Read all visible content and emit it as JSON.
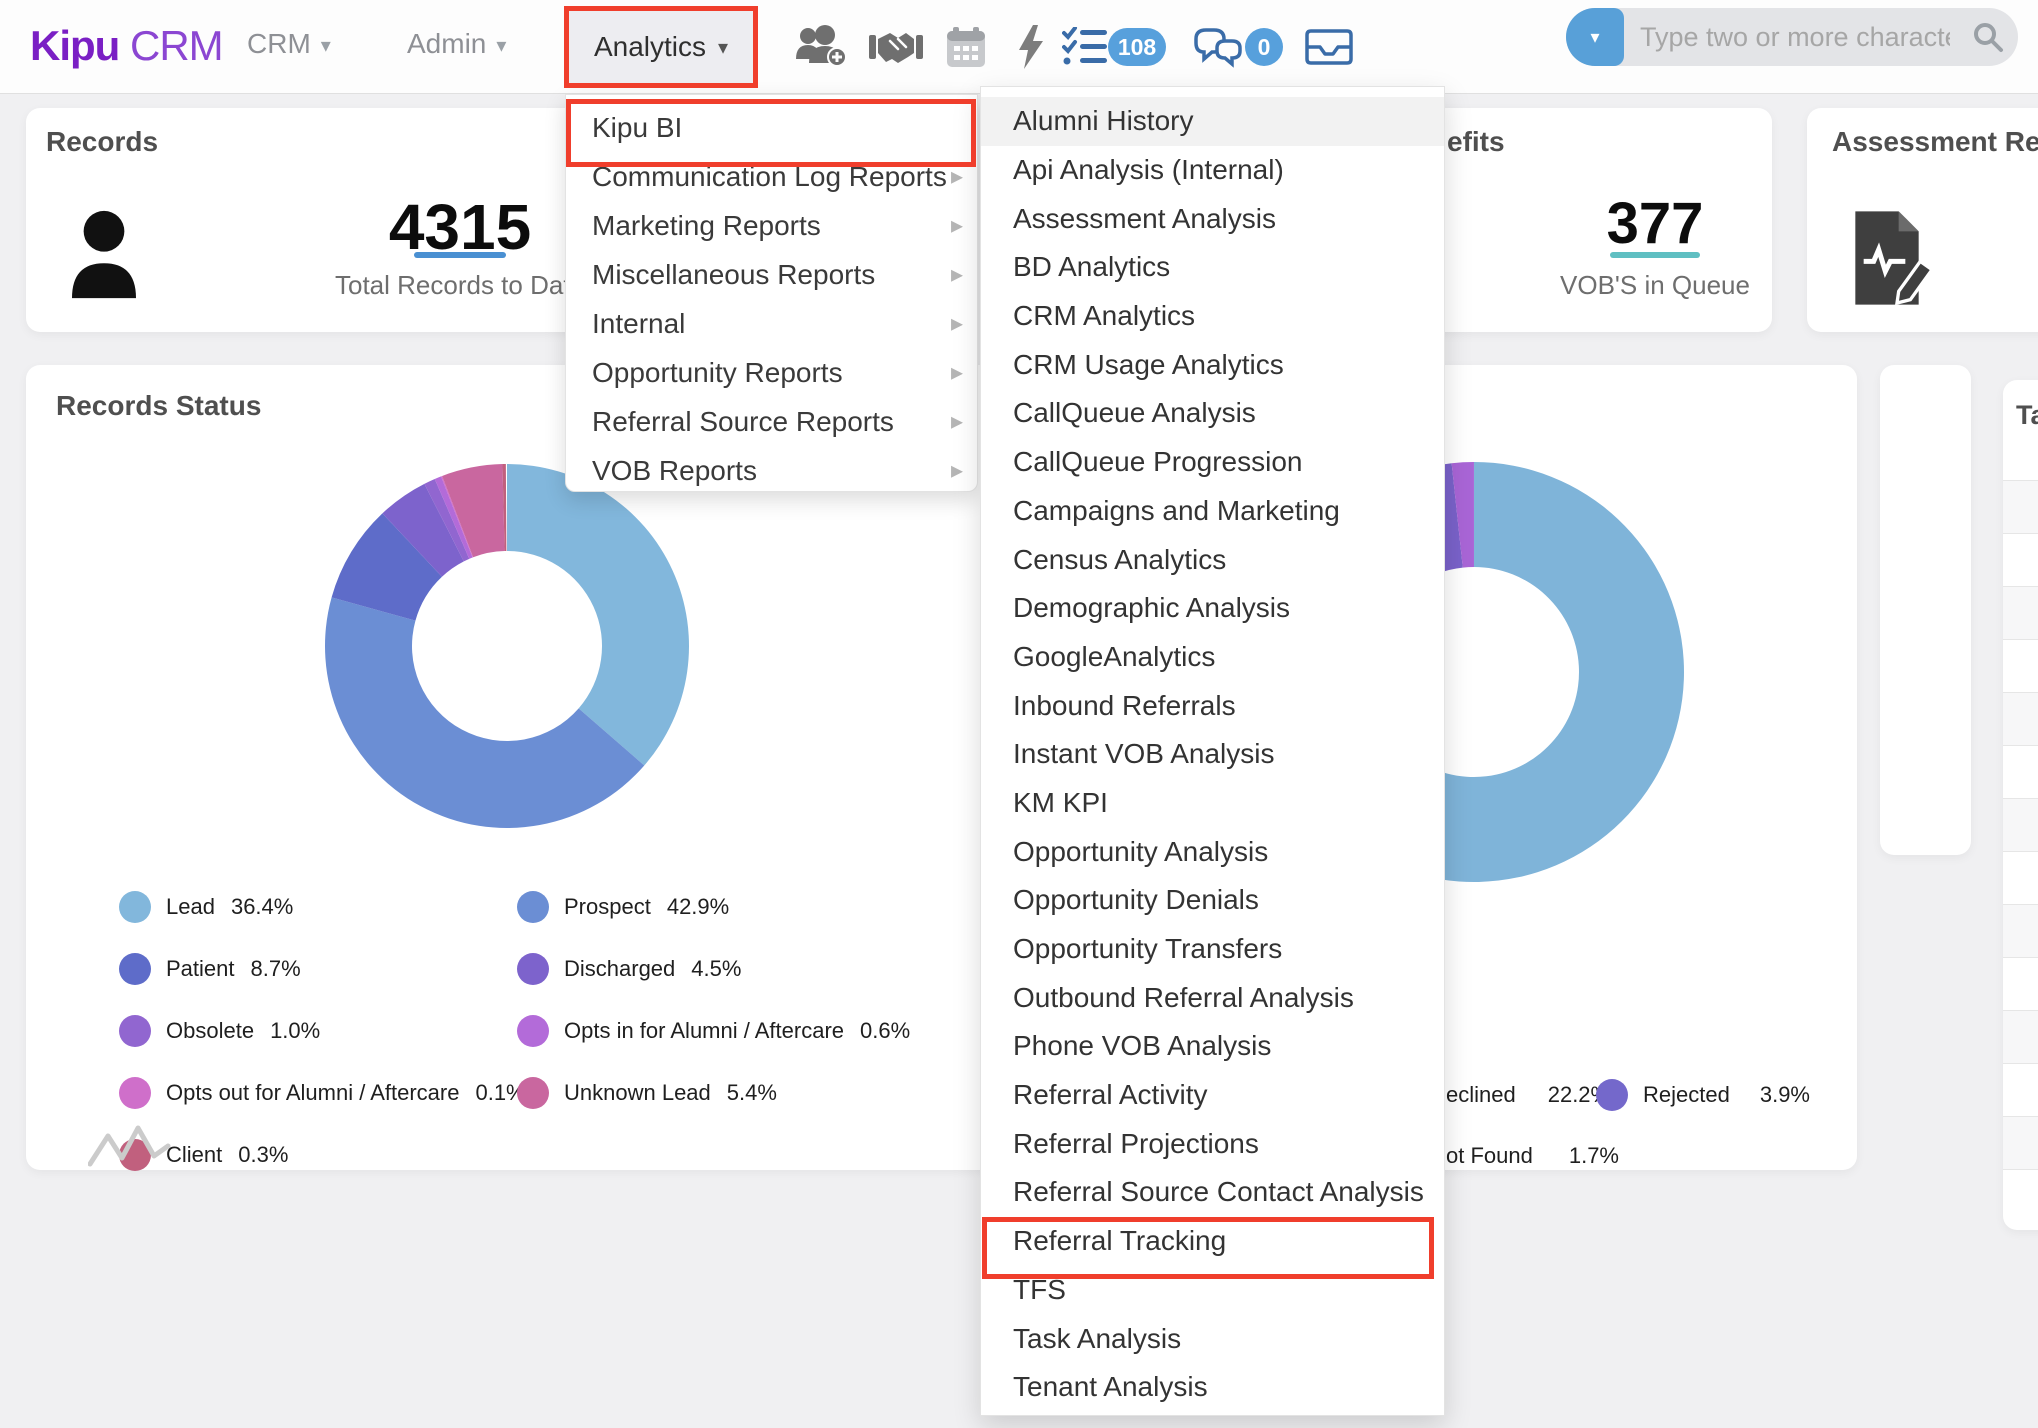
{
  "navbar": {
    "logo": {
      "bold": "Kipu",
      "rest": "CRM"
    },
    "nav_items": [
      {
        "label": "CRM"
      },
      {
        "label": "Admin"
      },
      {
        "label": "Analytics"
      }
    ],
    "task_badge": "108",
    "chat_badge": "0",
    "search": {
      "placeholder": "Type two or more characters to search..."
    }
  },
  "analytics_menu": {
    "items": [
      {
        "label": "Kipu BI",
        "has_submenu": false
      },
      {
        "label": "Communication Log Reports",
        "has_submenu": true
      },
      {
        "label": "Marketing Reports",
        "has_submenu": true
      },
      {
        "label": "Miscellaneous Reports",
        "has_submenu": true
      },
      {
        "label": "Internal",
        "has_submenu": true
      },
      {
        "label": "Opportunity Reports",
        "has_submenu": true
      },
      {
        "label": "Referral Source Reports",
        "has_submenu": true
      },
      {
        "label": "VOB Reports",
        "has_submenu": true
      }
    ]
  },
  "kipu_bi_submenu": {
    "items": [
      "Alumni History",
      "Api Analysis (Internal)",
      "Assessment Analysis",
      "BD Analytics",
      "CRM Analytics",
      "CRM Usage Analytics",
      "CallQueue Analysis",
      "CallQueue Progression",
      "Campaigns and Marketing",
      "Census Analytics",
      "Demographic Analysis",
      "GoogleAnalytics",
      "Inbound Referrals",
      "Instant VOB Analysis",
      "KM KPI",
      "Opportunity Analysis",
      "Opportunity Denials",
      "Opportunity Transfers",
      "Outbound Referral Analysis",
      "Phone VOB Analysis",
      "Referral Activity",
      "Referral Projections",
      "Referral Source Contact Analysis",
      "Referral Tracking",
      "TFS",
      "Task Analysis",
      "Tenant Analysis"
    ],
    "highlighted_item": "Alumni History",
    "annotated_item": "Referral Tracking"
  },
  "cards": {
    "records": {
      "title": "Records",
      "value": "4315",
      "caption": "Total Records to Date",
      "accent": "#4a90d2"
    },
    "benefits": {
      "title_visible": "efits",
      "value": "377",
      "caption": "VOB'S in Queue",
      "accent": "#5fbfc2"
    },
    "assessment": {
      "title_visible": "Assessment Respo"
    },
    "records_status": {
      "title": "Records Status"
    },
    "side_table": {
      "title_visible": "Ta"
    }
  },
  "chart_data": [
    {
      "type": "donut",
      "title": "Records Status",
      "slices": [
        {
          "label": "Lead",
          "value": 36.4,
          "color": "#82b7dc"
        },
        {
          "label": "Prospect",
          "value": 42.9,
          "color": "#6b8ed4"
        },
        {
          "label": "Patient",
          "value": 8.7,
          "color": "#5e6cc9"
        },
        {
          "label": "Discharged",
          "value": 4.5,
          "color": "#7d63cc"
        },
        {
          "label": "Obsolete",
          "value": 1.0,
          "color": "#9166d0"
        },
        {
          "label": "Opts in for Alumni / Aftercare",
          "value": 0.6,
          "color": "#b36bd9"
        },
        {
          "label": "Opts out for Alumni / Aftercare",
          "value": 0.1,
          "color": "#cf6fca"
        },
        {
          "label": "Unknown Lead",
          "value": 5.4,
          "color": "#c9679f"
        },
        {
          "label": "Client",
          "value": 0.3,
          "color": "#c1607e"
        }
      ],
      "legend": {
        "col1": [
          {
            "label": "Lead",
            "pct": "36.4%",
            "color": "#82b7dc"
          },
          {
            "label": "Patient",
            "pct": "8.7%",
            "color": "#5e6cc9"
          },
          {
            "label": "Obsolete",
            "pct": "1.0%",
            "color": "#9166d0"
          },
          {
            "label": "Opts out for Alumni / Aftercare",
            "pct": "0.1%",
            "color": "#cf6fca"
          },
          {
            "label": "Client",
            "pct": "0.3%",
            "color": "#c1607e"
          }
        ],
        "col2": [
          {
            "label": "Prospect",
            "pct": "42.9%",
            "color": "#6b8ed4"
          },
          {
            "label": "Discharged",
            "pct": "4.5%",
            "color": "#7d63cc"
          },
          {
            "label": "Opts in for Alumni / Aftercare",
            "pct": "0.6%",
            "color": "#b36bd9"
          },
          {
            "label": "Unknown Lead",
            "pct": "5.4%",
            "color": "#c9679f"
          }
        ]
      }
    },
    {
      "type": "donut",
      "title": "",
      "note": "card mostly hidden behind open submenu; first legend characters cut off",
      "slices": [
        {
          "label": "",
          "value": 72.2,
          "color": "#7fb4d9",
          "estimated": true
        },
        {
          "label": "eclined",
          "value": 22.2,
          "color": "#6b8ed4"
        },
        {
          "label": "Rejected",
          "value": 3.9,
          "color": "#7a62ca"
        },
        {
          "label": "ot Found",
          "value": 1.7,
          "color": "#a965d6"
        }
      ],
      "legend_visible": [
        {
          "label": "eclined",
          "pct": "22.2%"
        },
        {
          "label": "Rejected",
          "pct": "3.9%",
          "color": "#7468cb"
        },
        {
          "label": "ot Found",
          "pct": "1.7%"
        }
      ]
    }
  ],
  "colors": {
    "annotation_red": "#f03e2c",
    "accent_blue": "#4a90d2",
    "icon_blue": "#3a6ca8",
    "badge_blue": "#57a0dc",
    "logo_purple": "#7a1fc4"
  }
}
